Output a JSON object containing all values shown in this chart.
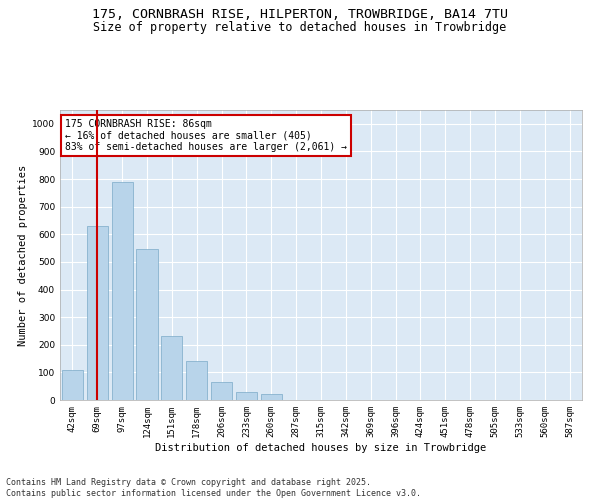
{
  "title_line1": "175, CORNBRASH RISE, HILPERTON, TROWBRIDGE, BA14 7TU",
  "title_line2": "Size of property relative to detached houses in Trowbridge",
  "xlabel": "Distribution of detached houses by size in Trowbridge",
  "ylabel": "Number of detached properties",
  "bar_color": "#b8d4ea",
  "bar_edge_color": "#7aaac8",
  "bg_color": "#dce9f5",
  "grid_color": "#ffffff",
  "vline_color": "#cc0000",
  "annotation_box_color": "#cc0000",
  "categories": [
    "42sqm",
    "69sqm",
    "97sqm",
    "124sqm",
    "151sqm",
    "178sqm",
    "206sqm",
    "233sqm",
    "260sqm",
    "287sqm",
    "315sqm",
    "342sqm",
    "369sqm",
    "396sqm",
    "424sqm",
    "451sqm",
    "478sqm",
    "505sqm",
    "533sqm",
    "560sqm",
    "587sqm"
  ],
  "values": [
    110,
    630,
    790,
    545,
    230,
    140,
    65,
    30,
    20,
    0,
    0,
    0,
    0,
    0,
    0,
    0,
    0,
    0,
    0,
    0,
    0
  ],
  "vline_pos": 1.0,
  "annotation_text": "175 CORNBRASH RISE: 86sqm\n← 16% of detached houses are smaller (405)\n83% of semi-detached houses are larger (2,061) →",
  "ylim": [
    0,
    1050
  ],
  "yticks": [
    0,
    100,
    200,
    300,
    400,
    500,
    600,
    700,
    800,
    900,
    1000
  ],
  "footer": "Contains HM Land Registry data © Crown copyright and database right 2025.\nContains public sector information licensed under the Open Government Licence v3.0.",
  "title_fontsize": 9.5,
  "subtitle_fontsize": 8.5,
  "axis_label_fontsize": 7.5,
  "tick_fontsize": 6.5,
  "annotation_fontsize": 7,
  "footer_fontsize": 6
}
